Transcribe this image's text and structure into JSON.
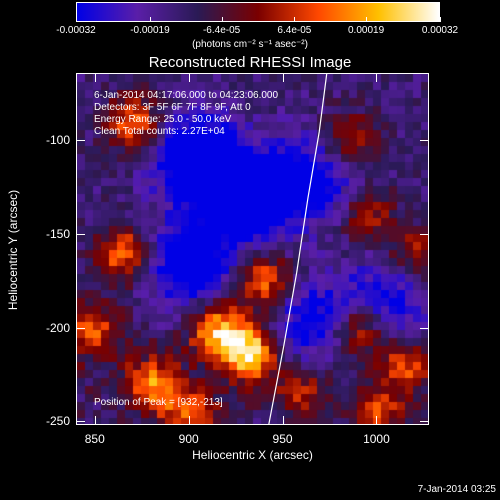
{
  "colorbar": {
    "unit_label": "(photons cm⁻² s⁻¹ asec⁻²)",
    "ticks": [
      "-0.00032",
      "-0.00019",
      "-6.4e-05",
      "6.4e-05",
      "0.00019",
      "0.00032"
    ],
    "colors": [
      "#0000e6",
      "#5a1ea8",
      "#2a1a55",
      "#7a0000",
      "#ff4800",
      "#ffc000",
      "#ffffff"
    ]
  },
  "title": "Reconstructed RHESSI Image",
  "info_lines": [
    "6-Jan-2014 04:17:06.000 to 04:23:06.000",
    "Detectors: 3F 5F 6F 7F 8F 9F, Att 0",
    "Energy Range: 25.0 - 50.0 keV",
    "Clean    Total counts: 2.27E+04"
  ],
  "peak_label": "Position of Peak = [932,-213]",
  "datestamp": "7-Jan-2014 03:25",
  "chart_data": {
    "type": "heatmap",
    "title": "Reconstructed RHESSI Image",
    "xlabel": "Heliocentric X (arcsec)",
    "ylabel": "Heliocentric Y (arcsec)",
    "xlim": [
      840,
      1028
    ],
    "ylim": [
      -252,
      -64
    ],
    "x_ticks": [
      850,
      900,
      950,
      1000
    ],
    "y_ticks": [
      -100,
      -150,
      -200,
      -250
    ],
    "colorbar_range": [
      -0.00032,
      0.00032
    ],
    "peak": {
      "x": 932,
      "y": -213
    },
    "limb_curve": [
      [
        942,
        -252
      ],
      [
        950,
        -210
      ],
      [
        957,
        -170
      ],
      [
        963,
        -130
      ],
      [
        969,
        -95
      ],
      [
        973,
        -64
      ]
    ],
    "bright_regions": [
      {
        "x": 932,
        "y": -213,
        "intensity": 1.0
      },
      {
        "x": 915,
        "y": -200,
        "intensity": 0.8
      },
      {
        "x": 940,
        "y": -175,
        "intensity": 0.7
      },
      {
        "x": 880,
        "y": -230,
        "intensity": 0.65
      },
      {
        "x": 865,
        "y": -160,
        "intensity": 0.7
      },
      {
        "x": 848,
        "y": -200,
        "intensity": 0.6
      },
      {
        "x": 870,
        "y": -90,
        "intensity": 0.65
      },
      {
        "x": 990,
        "y": -200,
        "intensity": 0.65
      },
      {
        "x": 1015,
        "y": -220,
        "intensity": 0.6
      },
      {
        "x": 985,
        "y": -100,
        "intensity": 0.55
      },
      {
        "x": 1000,
        "y": -245,
        "intensity": 0.55
      },
      {
        "x": 960,
        "y": -235,
        "intensity": 0.5
      },
      {
        "x": 900,
        "y": -245,
        "intensity": 0.55
      },
      {
        "x": 1020,
        "y": -160,
        "intensity": 0.45
      },
      {
        "x": 995,
        "y": -140,
        "intensity": 0.45
      }
    ],
    "dark_regions": [
      {
        "x": 905,
        "y": -110,
        "intensity": -0.9
      },
      {
        "x": 930,
        "y": -130,
        "intensity": -0.8
      },
      {
        "x": 900,
        "y": -165,
        "intensity": -0.7
      },
      {
        "x": 965,
        "y": -120,
        "intensity": -0.6
      },
      {
        "x": 1005,
        "y": -185,
        "intensity": -0.5
      },
      {
        "x": 965,
        "y": -195,
        "intensity": -0.5
      }
    ]
  }
}
